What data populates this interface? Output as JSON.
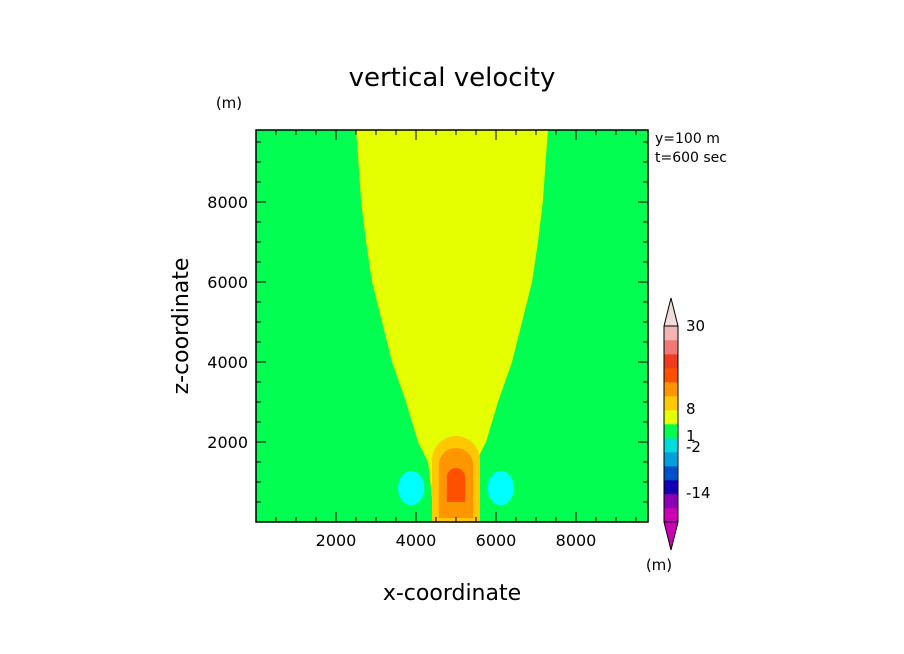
{
  "chart_data": {
    "type": "heatmap",
    "title": "vertical velocity",
    "xlabel": "x-coordinate",
    "ylabel": "z-coordinate",
    "x_unit": "(m)",
    "y_unit": "(m)",
    "colorbar_unit": "(m)",
    "xlim": [
      0,
      9800
    ],
    "ylim": [
      0,
      9800
    ],
    "xticks": [
      2000,
      4000,
      6000,
      8000
    ],
    "yticks": [
      2000,
      4000,
      6000,
      8000
    ],
    "annotations": [
      "y=100 m",
      "t=600 sec"
    ],
    "colorbar": {
      "labels": [
        {
          "text": "30",
          "value": 30
        },
        {
          "text": "8",
          "value": 8
        },
        {
          "text": "1",
          "value": 1
        },
        {
          "text": "-2",
          "value": -2
        },
        {
          "text": "-14",
          "value": -14
        }
      ],
      "colors": [
        "#cc00b4",
        "#8c00b4",
        "#1400b4",
        "#0050c8",
        "#00a0dc",
        "#00dcdc",
        "#00ff50",
        "#e6ff00",
        "#ffc800",
        "#ff9600",
        "#ff5000",
        "#f03c1e",
        "#f07878",
        "#f5b4b4"
      ],
      "max_arrow_color": "#f0dcdc",
      "min_arrow_color": "#cc00b4"
    },
    "colors": {
      "background_field": "#00ff50",
      "plume": "#e6ff00",
      "core_outer": "#ffc800",
      "core_mid": "#ff9600",
      "core_inner": "#ff5000",
      "downdraft": "#00ffff"
    },
    "plume_boundary": {
      "z": [
        0,
        600,
        1500,
        2000,
        3000,
        4000,
        5000,
        6000,
        7000,
        8000,
        9000,
        9800
      ],
      "half_width": [
        500,
        500,
        600,
        850,
        1150,
        1500,
        1750,
        2000,
        2150,
        2270,
        2340,
        2400
      ]
    },
    "updraft_core": [
      {
        "level": "outer",
        "x_center": 5000,
        "z_bottom": 0,
        "z_top": 2150,
        "half_width": 600
      },
      {
        "level": "mid",
        "x_center": 5000,
        "z_bottom": 100,
        "z_top": 1850,
        "half_width": 430
      },
      {
        "level": "inner",
        "x_center": 5000,
        "z_bottom": 500,
        "z_top": 1350,
        "half_width": 230
      }
    ],
    "downdrafts": [
      {
        "x_center": 3880,
        "z_center": 850,
        "x_radius": 330,
        "z_radius": 430
      },
      {
        "x_center": 6120,
        "z_center": 850,
        "x_radius": 330,
        "z_radius": 430
      }
    ]
  }
}
